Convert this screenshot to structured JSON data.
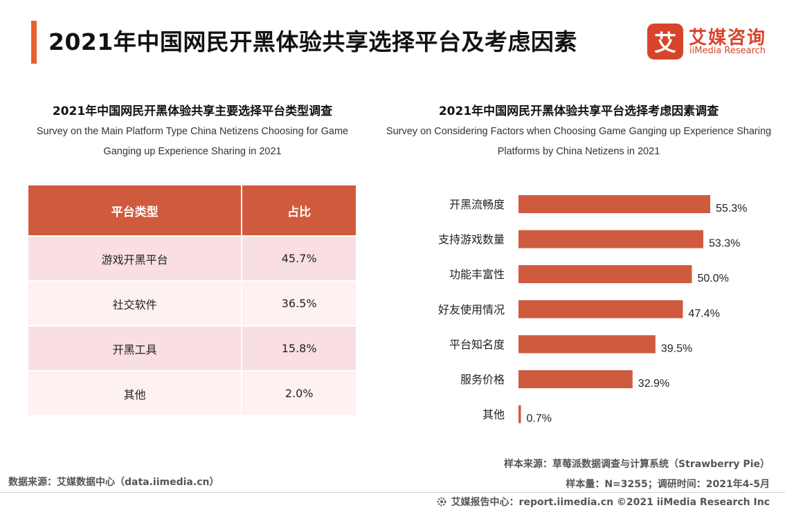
{
  "header": {
    "title": "2021年中国网民开黑体验共享选择平台及考虑因素",
    "logo_cn": "艾媒咨询",
    "logo_en": "iiMedia Research",
    "logo_glyph": "艾"
  },
  "colors": {
    "accent": "#e8602c",
    "bar": "#d05a3d",
    "brand": "#d8442a",
    "row_odd": "#f9dfe1",
    "row_even": "#fdf1f2"
  },
  "left": {
    "title_cn": "2021年中国网民开黑体验共享主要选择平台类型调查",
    "title_en": "Survey on the Main Platform Type China Netizens Choosing for Game Ganging up Experience Sharing in 2021",
    "table": {
      "headers": [
        "平台类型",
        "占比"
      ],
      "rows": [
        [
          "游戏开黑平台",
          "45.7%"
        ],
        [
          "社交软件",
          "36.5%"
        ],
        [
          "开黑工具",
          "15.8%"
        ],
        [
          "其他",
          "2.0%"
        ]
      ]
    }
  },
  "right": {
    "title_cn": "2021年中国网民开黑体验共享平台选择考虑因素调查",
    "title_en": "Survey on Considering Factors when Choosing Game Ganging up Experience Sharing Platforms by China Netizens in 2021"
  },
  "chart_data": [
    {
      "type": "table",
      "title": "2021年中国网民开黑体验共享主要选择平台类型调查",
      "columns": [
        "平台类型",
        "占比"
      ],
      "rows": [
        [
          "游戏开黑平台",
          "45.7%"
        ],
        [
          "社交软件",
          "36.5%"
        ],
        [
          "开黑工具",
          "15.8%"
        ],
        [
          "其他",
          "2.0%"
        ]
      ]
    },
    {
      "type": "bar",
      "orientation": "horizontal",
      "title": "2021年中国网民开黑体验共享平台选择考虑因素调查",
      "categories": [
        "开黑流畅度",
        "支持游戏数量",
        "功能丰富性",
        "好友使用情况",
        "平台知名度",
        "服务价格",
        "其他"
      ],
      "values": [
        55.3,
        53.3,
        50.0,
        47.4,
        39.5,
        32.9,
        0.7
      ],
      "value_labels": [
        "55.3%",
        "53.3%",
        "50.0%",
        "47.4%",
        "39.5%",
        "32.9%",
        "0.7%"
      ],
      "xlim": [
        0,
        60
      ],
      "grid": false,
      "bar_color": "#d05a3d"
    }
  ],
  "sources": {
    "sample_source": "样本来源：草莓派数据调查与计算系统（Strawberry Pie）",
    "sample_info": "样本量：N=3255；调研时间：2021年4-5月",
    "data_source": "数据来源：艾媒数据中心（data.iimedia.cn）",
    "footer": "艾媒报告中心：report.iimedia.cn ©2021  iiMedia Research  Inc"
  }
}
